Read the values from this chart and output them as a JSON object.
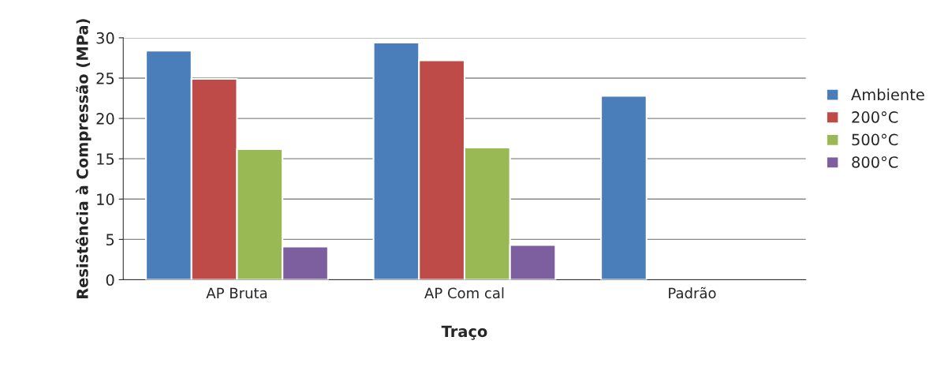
{
  "chart_data": {
    "type": "bar",
    "xlabel": "Traço",
    "ylabel": "Resistência à Compressão (MPa)",
    "categories": [
      "AP Bruta",
      "AP Com cal",
      "Padrão"
    ],
    "series": [
      {
        "name": "Ambiente",
        "color": "#4a7ebb",
        "values": [
          28.4,
          29.4,
          22.8
        ]
      },
      {
        "name": "200°C",
        "color": "#be4b48",
        "values": [
          24.9,
          27.2,
          null
        ]
      },
      {
        "name": "500°C",
        "color": "#98b954",
        "values": [
          16.2,
          16.4,
          null
        ]
      },
      {
        "name": "800°C",
        "color": "#7d5fa0",
        "values": [
          4.1,
          4.3,
          null
        ]
      }
    ],
    "ylim": [
      0,
      30
    ],
    "yticks": [
      0,
      5,
      10,
      15,
      20,
      25,
      30
    ],
    "grid": "y",
    "legend": "right"
  }
}
